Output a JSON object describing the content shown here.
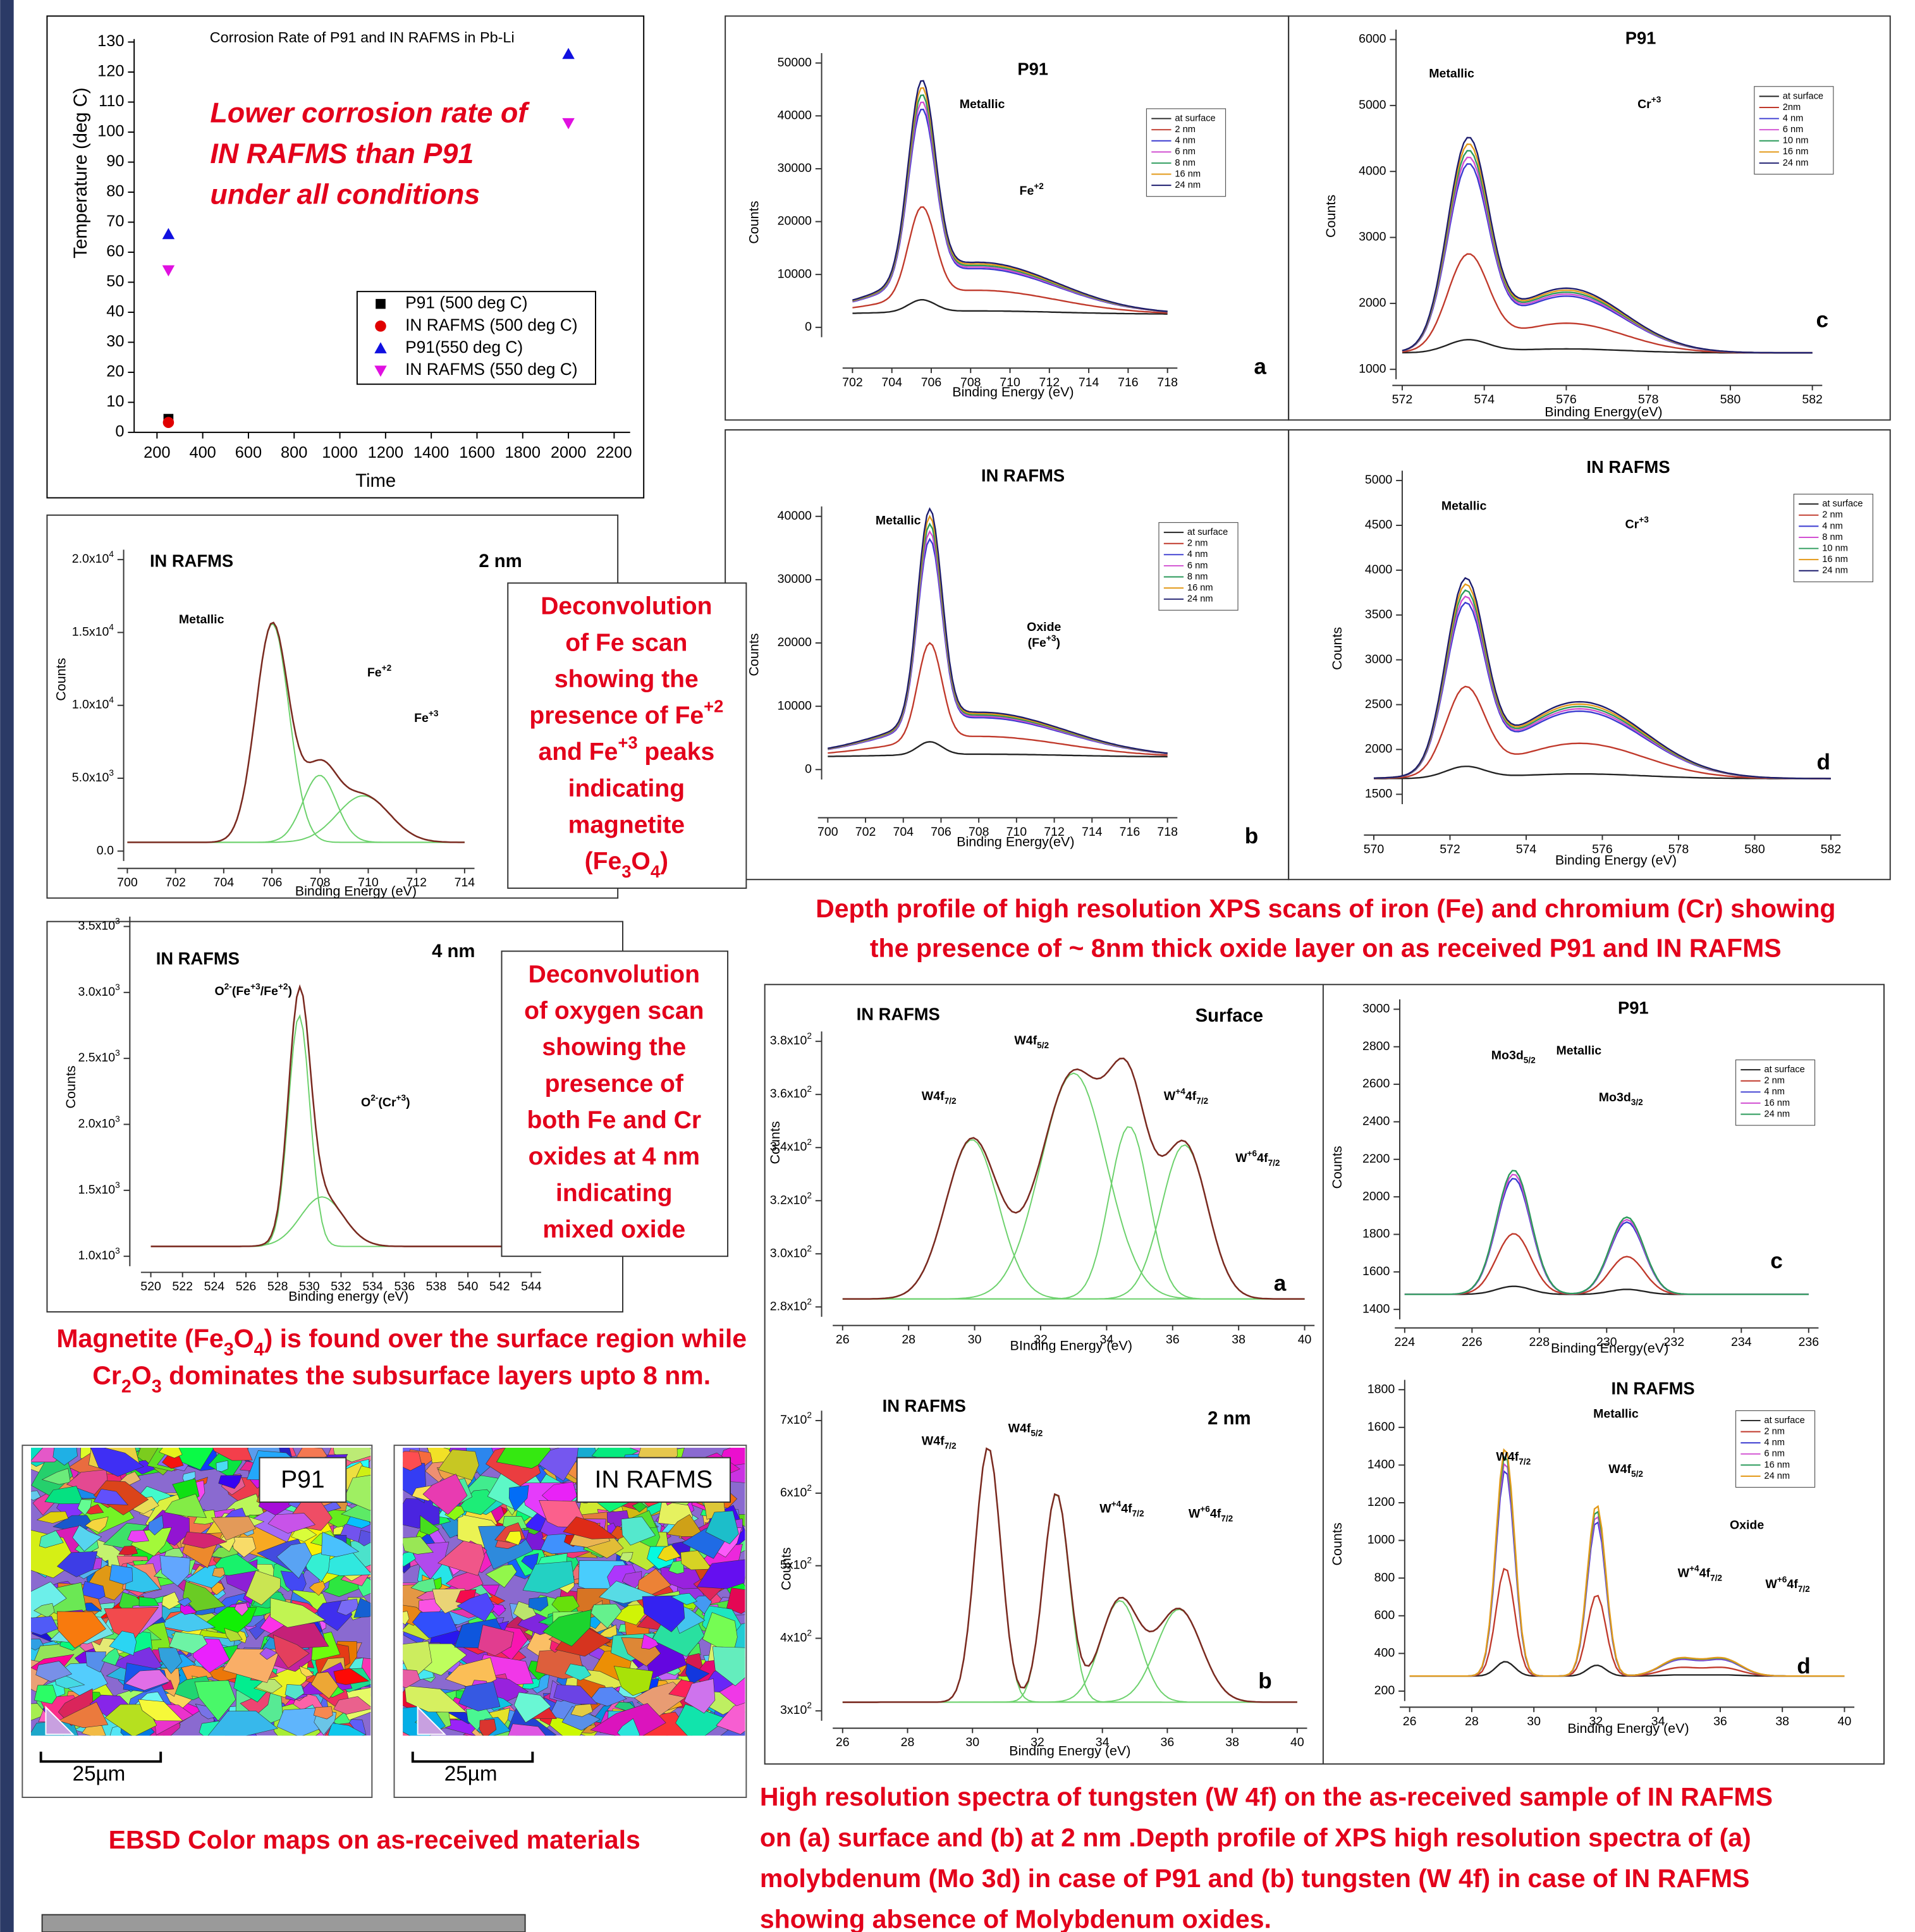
{
  "chart_data": {
    "type": "scatter",
    "title": "Corrosion Rate of P91 and IN RAFMS in Pb-Li",
    "x_label": "Time",
    "y_label": "Temperature (deg C)",
    "xlim": [
      100,
      2270
    ],
    "ylim": [
      0,
      131
    ],
    "xticks": [
      200,
      400,
      600,
      800,
      1000,
      1200,
      1400,
      1600,
      1800,
      2000,
      2200
    ],
    "yticks": [
      0,
      10,
      20,
      30,
      40,
      50,
      60,
      70,
      80,
      90,
      100,
      110,
      120,
      130
    ],
    "annotation": [
      "Lower corrosion rate of",
      "IN RAFMS than P91",
      "under all conditions"
    ],
    "series": [
      {
        "name": "P91 (500 deg C)",
        "color": "#000000",
        "marker": "square",
        "x": [
          250
        ],
        "values": [
          4.5
        ]
      },
      {
        "name": "IN RAFMS (500 deg C)",
        "color": "#e00000",
        "marker": "circle",
        "x": [
          250
        ],
        "values": [
          3.3
        ]
      },
      {
        "name": "P91(550 deg C)",
        "color": "#1010e0",
        "marker": "triangle-up",
        "x": [
          250,
          2000
        ],
        "values": [
          66,
          126
        ]
      },
      {
        "name": "IN RAFMS (550 deg C)",
        "color": "#e010e0",
        "marker": "triangle-down",
        "x": [
          250,
          2000
        ],
        "values": [
          54,
          103
        ]
      }
    ]
  },
  "panels": [
    {
      "title": "P91",
      "letter": "a",
      "x_label": "Binding Energy (eV)",
      "y_label": "Counts",
      "xticks": [
        702,
        704,
        706,
        708,
        710,
        712,
        714,
        716,
        718
      ],
      "yticks": [
        0,
        10000,
        20000,
        30000,
        40000,
        50000
      ],
      "legend": [
        "at surface",
        "2 nm",
        "4 nm",
        "6 nm",
        "8 nm",
        "16 nm",
        "24 nm"
      ],
      "annotations": [
        "Metallic",
        [
          {
            "t": "Fe"
          },
          {
            "sup": "+2"
          }
        ]
      ]
    },
    {
      "title": "P91",
      "letter": "c",
      "x_label": "Binding Energy(eV)",
      "y_label": "Counts",
      "xticks": [
        572,
        574,
        576,
        578,
        580,
        582
      ],
      "yticks": [
        1000,
        2000,
        3000,
        4000,
        5000,
        6000
      ],
      "legend": [
        "at surface",
        "2nm",
        "4 nm",
        "6 nm",
        "10 nm",
        "16 nm",
        "24 nm"
      ],
      "annotations": [
        "Metallic",
        [
          {
            "t": "Cr"
          },
          {
            "sup": "+3"
          }
        ]
      ]
    },
    {
      "title": "IN RAFMS",
      "letter": "b",
      "x_label": "Binding Energy(eV)",
      "y_label": "Counts",
      "xticks": [
        700,
        702,
        704,
        706,
        708,
        710,
        712,
        714,
        716,
        718
      ],
      "yticks": [
        0,
        10000,
        20000,
        30000,
        40000
      ],
      "legend": [
        "at surface",
        "2 nm",
        "4 nm",
        "6 nm",
        "8 nm",
        "16 nm",
        "24 nm"
      ],
      "annotations": [
        "Metallic",
        "Oxide",
        [
          {
            "t": "(Fe"
          },
          {
            "sup": "+3"
          },
          {
            "t": ")"
          }
        ]
      ]
    },
    {
      "title": "IN RAFMS",
      "letter": "d",
      "x_label": "Binding Energy (eV)",
      "y_label": "Counts",
      "xticks": [
        570,
        572,
        574,
        576,
        578,
        580,
        582
      ],
      "yticks": [
        1500,
        2000,
        2500,
        3000,
        3500,
        4000,
        4500,
        5000
      ],
      "legend": [
        "at surface",
        "2 nm",
        "4 nm",
        "8 nm",
        "10 nm",
        "16 nm",
        "24 nm"
      ],
      "annotations": [
        "Metallic",
        [
          {
            "t": "Cr"
          },
          {
            "sup": "+3"
          }
        ]
      ]
    },
    {
      "title": "IN RAFMS",
      "subtitle": "2 nm",
      "x_label": "Binding Energy (eV)",
      "y_label": "Counts",
      "xticks": [
        700,
        702,
        704,
        706,
        708,
        710,
        712,
        714
      ],
      "yticks": [
        "0.0",
        [
          {
            "t": "5.0x10"
          },
          {
            "sup": "3"
          }
        ],
        [
          {
            "t": "1.0x10"
          },
          {
            "sup": "4"
          }
        ],
        [
          {
            "t": "1.5x10"
          },
          {
            "sup": "4"
          }
        ],
        [
          {
            "t": "2.0x10"
          },
          {
            "sup": "4"
          }
        ]
      ],
      "annotations": [
        "Metallic",
        [
          {
            "t": "Fe"
          },
          {
            "sup": "+2"
          }
        ],
        [
          {
            "t": "Fe"
          },
          {
            "sup": "+3"
          }
        ]
      ]
    },
    {
      "title": "IN RAFMS",
      "subtitle": "4 nm",
      "x_label": "Binding energy (eV)",
      "y_label": "Counts",
      "xticks": [
        520,
        522,
        524,
        526,
        528,
        530,
        532,
        534,
        536,
        538,
        540,
        542,
        544
      ],
      "yticks": [
        [
          {
            "t": "1.0x10"
          },
          {
            "sup": "3"
          }
        ],
        [
          {
            "t": "1.5x10"
          },
          {
            "sup": "3"
          }
        ],
        [
          {
            "t": "2.0x10"
          },
          {
            "sup": "3"
          }
        ],
        [
          {
            "t": "2.5x10"
          },
          {
            "sup": "3"
          }
        ],
        [
          {
            "t": "3.0x10"
          },
          {
            "sup": "3"
          }
        ],
        [
          {
            "t": "3.5x10"
          },
          {
            "sup": "3"
          }
        ]
      ],
      "annotations": [
        [
          {
            "t": "O"
          },
          {
            "sup": "2-"
          },
          {
            "t": "(Fe"
          },
          {
            "sup": "+3"
          },
          {
            "t": "/Fe"
          },
          {
            "sup": "+2"
          },
          {
            "t": ")"
          }
        ],
        [
          {
            "t": "O"
          },
          {
            "sup": "2-"
          },
          {
            "t": "(Cr"
          },
          {
            "sup": "+3"
          },
          {
            "t": ")"
          }
        ]
      ]
    },
    {
      "title": "IN RAFMS",
      "subtitle": "Surface",
      "letter": "a",
      "x_label": "BInding Energy (eV)",
      "y_label": "Counts",
      "xticks": [
        26,
        28,
        30,
        32,
        34,
        36,
        38,
        40
      ],
      "yticks": [
        [
          {
            "t": "2.8x10"
          },
          {
            "sup": "2"
          }
        ],
        [
          {
            "t": "3.0x10"
          },
          {
            "sup": "2"
          }
        ],
        [
          {
            "t": "3.2x10"
          },
          {
            "sup": "2"
          }
        ],
        [
          {
            "t": "3.4x10"
          },
          {
            "sup": "2"
          }
        ],
        [
          {
            "t": "3.6x10"
          },
          {
            "sup": "2"
          }
        ],
        [
          {
            "t": "3.8x10"
          },
          {
            "sup": "2"
          }
        ]
      ],
      "annotations": [
        [
          {
            "t": "W4f"
          },
          {
            "sub": "7/2"
          }
        ],
        [
          {
            "t": "W4f"
          },
          {
            "sub": "5/2"
          }
        ],
        [
          {
            "t": "W"
          },
          {
            "sup": "+4"
          },
          {
            "t": "4f"
          },
          {
            "sub": "7/2"
          }
        ],
        [
          {
            "t": "W"
          },
          {
            "sup": "+6"
          },
          {
            "t": "4f"
          },
          {
            "sub": "7/2"
          }
        ]
      ]
    },
    {
      "title": "P91",
      "letter": "c",
      "x_label": "Binding Energy(eV)",
      "y_label": "Counts",
      "xticks": [
        224,
        226,
        228,
        230,
        232,
        234,
        236
      ],
      "yticks": [
        1400,
        1600,
        1800,
        2000,
        2200,
        2400,
        2600,
        2800,
        3000
      ],
      "legend": [
        "at surface",
        "2 nm",
        "4 nm",
        "16 nm",
        "24 nm"
      ],
      "annotations": [
        [
          {
            "t": "Mo3d"
          },
          {
            "sub": "5/2"
          }
        ],
        "Metallic",
        [
          {
            "t": "Mo3d"
          },
          {
            "sub": "3/2"
          }
        ]
      ]
    },
    {
      "title": "IN RAFMS",
      "subtitle": "2 nm",
      "letter": "b",
      "x_label": "Binding Energy (eV)",
      "y_label": "Counts",
      "xticks": [
        26,
        28,
        30,
        32,
        34,
        36,
        38,
        40
      ],
      "yticks": [
        [
          {
            "t": "3x10"
          },
          {
            "sup": "2"
          }
        ],
        [
          {
            "t": "4x10"
          },
          {
            "sup": "2"
          }
        ],
        [
          {
            "t": "5x10"
          },
          {
            "sup": "2"
          }
        ],
        [
          {
            "t": "6x10"
          },
          {
            "sup": "2"
          }
        ],
        [
          {
            "t": "7x10"
          },
          {
            "sup": "2"
          }
        ]
      ],
      "annotations": [
        [
          {
            "t": "W4f"
          },
          {
            "sub": "7/2"
          }
        ],
        [
          {
            "t": "W4f"
          },
          {
            "sub": "5/2"
          }
        ],
        [
          {
            "t": "W"
          },
          {
            "sup": "+4"
          },
          {
            "t": "4f"
          },
          {
            "sub": "7/2"
          }
        ],
        [
          {
            "t": "W"
          },
          {
            "sup": "+6"
          },
          {
            "t": "4f"
          },
          {
            "sub": "7/2"
          }
        ]
      ]
    },
    {
      "title": "IN RAFMS",
      "letter": "d",
      "x_label": "Binding Energy (eV)",
      "y_label": "Counts",
      "xticks": [
        26,
        28,
        30,
        32,
        34,
        36,
        38,
        40
      ],
      "yticks": [
        200,
        400,
        600,
        800,
        1000,
        1200,
        1400,
        1600,
        1800
      ],
      "legend": [
        "at surface",
        "2 nm",
        "4 nm",
        "6 nm",
        "16 nm",
        "24 nm"
      ],
      "annotations": [
        "Metallic",
        [
          {
            "t": "W4f"
          },
          {
            "sub": "7/2"
          }
        ],
        [
          {
            "t": "W4f"
          },
          {
            "sub": "5/2"
          }
        ],
        "Oxide",
        [
          {
            "t": "W"
          },
          {
            "sup": "+4"
          },
          {
            "t": "4f"
          },
          {
            "sub": "7/2"
          }
        ],
        [
          {
            "t": "W"
          },
          {
            "sup": "+6"
          },
          {
            "t": "4f"
          },
          {
            "sub": "7/2"
          }
        ]
      ]
    }
  ],
  "text_boxes": [
    [
      "Deconvolution",
      "of Fe scan",
      "showing the",
      [
        {
          "t": "presence of Fe"
        },
        {
          "sup": "+2"
        }
      ],
      [
        {
          "t": "and Fe"
        },
        {
          "sup": "+3"
        },
        {
          "t": " peaks"
        }
      ],
      "indicating",
      "magnetite",
      [
        {
          "t": "(Fe"
        },
        {
          "sub": "3"
        },
        {
          "t": "O"
        },
        {
          "sub": "4"
        },
        {
          "t": ")"
        }
      ]
    ],
    [
      "Deconvolution",
      "of oxygen scan",
      "showing the",
      "presence of",
      "both Fe and Cr",
      "oxides at 4 nm",
      "indicating",
      "mixed oxide"
    ]
  ],
  "ebsd_maps": [
    {
      "label": "P91",
      "scale": "25µm"
    },
    {
      "label": "IN RAFMS",
      "scale": "25µm"
    }
  ],
  "captions": {
    "xps_fe_cr": [
      "Depth profile of high resolution XPS scans of iron (Fe) and chromium (Cr) showing",
      "the presence of ~ 8nm thick oxide layer on as received P91 and IN RAFMS"
    ],
    "oxide": [
      [
        {
          "t": "Magnetite (Fe"
        },
        {
          "sub": "3"
        },
        {
          "t": "O"
        },
        {
          "sub": "4"
        },
        {
          "t": ") is found over the surface region while"
        }
      ],
      [
        {
          "t": "Cr"
        },
        {
          "sub": "2"
        },
        {
          "t": "O"
        },
        {
          "sub": "3"
        },
        {
          "t": " dominates the subsurface layers upto 8 nm."
        }
      ]
    ],
    "ebsd": "EBSD Color maps on as-received materials",
    "tungsten": [
      "High resolution spectra of tungsten (W 4f) on the as-received sample of IN RAFMS",
      "on (a) surface and (b) at 2 nm .Depth profile of XPS high resolution spectra of (a)",
      "molybdenum (Mo 3d) in case of P91 and (b) tungsten (W 4f) in case of IN RAFMS",
      "showing absence of Molybdenum oxides."
    ]
  }
}
